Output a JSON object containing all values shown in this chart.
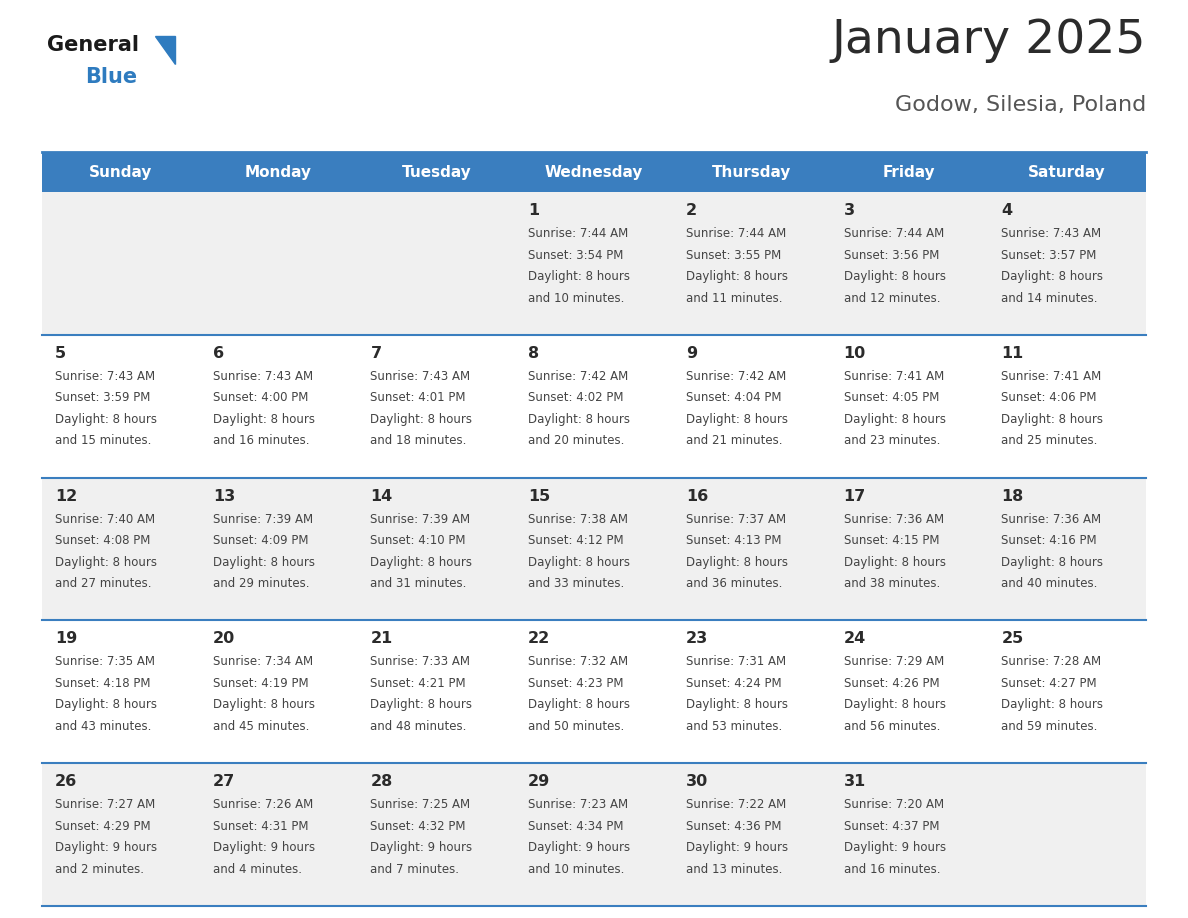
{
  "title": "January 2025",
  "subtitle": "Godow, Silesia, Poland",
  "header_color": "#3a7ebf",
  "header_text_color": "#ffffff",
  "day_names": [
    "Sunday",
    "Monday",
    "Tuesday",
    "Wednesday",
    "Thursday",
    "Friday",
    "Saturday"
  ],
  "background_color": "#ffffff",
  "cell_bg_odd": "#f0f0f0",
  "cell_bg_even": "#ffffff",
  "line_color": "#3a7ebf",
  "title_color": "#2b2b2b",
  "subtitle_color": "#555555",
  "day_number_color": "#2b2b2b",
  "cell_text_color": "#444444",
  "logo_general_color": "#1a1a1a",
  "logo_blue_color": "#2e7bbf",
  "weeks": [
    {
      "row": 0,
      "days": [
        {
          "col": 0,
          "day": null,
          "sunrise": null,
          "sunset": null,
          "daylight": null
        },
        {
          "col": 1,
          "day": null,
          "sunrise": null,
          "sunset": null,
          "daylight": null
        },
        {
          "col": 2,
          "day": null,
          "sunrise": null,
          "sunset": null,
          "daylight": null
        },
        {
          "col": 3,
          "day": 1,
          "sunrise": "7:44 AM",
          "sunset": "3:54 PM",
          "daylight": "8 hours and 10 minutes."
        },
        {
          "col": 4,
          "day": 2,
          "sunrise": "7:44 AM",
          "sunset": "3:55 PM",
          "daylight": "8 hours and 11 minutes."
        },
        {
          "col": 5,
          "day": 3,
          "sunrise": "7:44 AM",
          "sunset": "3:56 PM",
          "daylight": "8 hours and 12 minutes."
        },
        {
          "col": 6,
          "day": 4,
          "sunrise": "7:43 AM",
          "sunset": "3:57 PM",
          "daylight": "8 hours and 14 minutes."
        }
      ]
    },
    {
      "row": 1,
      "days": [
        {
          "col": 0,
          "day": 5,
          "sunrise": "7:43 AM",
          "sunset": "3:59 PM",
          "daylight": "8 hours and 15 minutes."
        },
        {
          "col": 1,
          "day": 6,
          "sunrise": "7:43 AM",
          "sunset": "4:00 PM",
          "daylight": "8 hours and 16 minutes."
        },
        {
          "col": 2,
          "day": 7,
          "sunrise": "7:43 AM",
          "sunset": "4:01 PM",
          "daylight": "8 hours and 18 minutes."
        },
        {
          "col": 3,
          "day": 8,
          "sunrise": "7:42 AM",
          "sunset": "4:02 PM",
          "daylight": "8 hours and 20 minutes."
        },
        {
          "col": 4,
          "day": 9,
          "sunrise": "7:42 AM",
          "sunset": "4:04 PM",
          "daylight": "8 hours and 21 minutes."
        },
        {
          "col": 5,
          "day": 10,
          "sunrise": "7:41 AM",
          "sunset": "4:05 PM",
          "daylight": "8 hours and 23 minutes."
        },
        {
          "col": 6,
          "day": 11,
          "sunrise": "7:41 AM",
          "sunset": "4:06 PM",
          "daylight": "8 hours and 25 minutes."
        }
      ]
    },
    {
      "row": 2,
      "days": [
        {
          "col": 0,
          "day": 12,
          "sunrise": "7:40 AM",
          "sunset": "4:08 PM",
          "daylight": "8 hours and 27 minutes."
        },
        {
          "col": 1,
          "day": 13,
          "sunrise": "7:39 AM",
          "sunset": "4:09 PM",
          "daylight": "8 hours and 29 minutes."
        },
        {
          "col": 2,
          "day": 14,
          "sunrise": "7:39 AM",
          "sunset": "4:10 PM",
          "daylight": "8 hours and 31 minutes."
        },
        {
          "col": 3,
          "day": 15,
          "sunrise": "7:38 AM",
          "sunset": "4:12 PM",
          "daylight": "8 hours and 33 minutes."
        },
        {
          "col": 4,
          "day": 16,
          "sunrise": "7:37 AM",
          "sunset": "4:13 PM",
          "daylight": "8 hours and 36 minutes."
        },
        {
          "col": 5,
          "day": 17,
          "sunrise": "7:36 AM",
          "sunset": "4:15 PM",
          "daylight": "8 hours and 38 minutes."
        },
        {
          "col": 6,
          "day": 18,
          "sunrise": "7:36 AM",
          "sunset": "4:16 PM",
          "daylight": "8 hours and 40 minutes."
        }
      ]
    },
    {
      "row": 3,
      "days": [
        {
          "col": 0,
          "day": 19,
          "sunrise": "7:35 AM",
          "sunset": "4:18 PM",
          "daylight": "8 hours and 43 minutes."
        },
        {
          "col": 1,
          "day": 20,
          "sunrise": "7:34 AM",
          "sunset": "4:19 PM",
          "daylight": "8 hours and 45 minutes."
        },
        {
          "col": 2,
          "day": 21,
          "sunrise": "7:33 AM",
          "sunset": "4:21 PM",
          "daylight": "8 hours and 48 minutes."
        },
        {
          "col": 3,
          "day": 22,
          "sunrise": "7:32 AM",
          "sunset": "4:23 PM",
          "daylight": "8 hours and 50 minutes."
        },
        {
          "col": 4,
          "day": 23,
          "sunrise": "7:31 AM",
          "sunset": "4:24 PM",
          "daylight": "8 hours and 53 minutes."
        },
        {
          "col": 5,
          "day": 24,
          "sunrise": "7:29 AM",
          "sunset": "4:26 PM",
          "daylight": "8 hours and 56 minutes."
        },
        {
          "col": 6,
          "day": 25,
          "sunrise": "7:28 AM",
          "sunset": "4:27 PM",
          "daylight": "8 hours and 59 minutes."
        }
      ]
    },
    {
      "row": 4,
      "days": [
        {
          "col": 0,
          "day": 26,
          "sunrise": "7:27 AM",
          "sunset": "4:29 PM",
          "daylight": "9 hours and 2 minutes."
        },
        {
          "col": 1,
          "day": 27,
          "sunrise": "7:26 AM",
          "sunset": "4:31 PM",
          "daylight": "9 hours and 4 minutes."
        },
        {
          "col": 2,
          "day": 28,
          "sunrise": "7:25 AM",
          "sunset": "4:32 PM",
          "daylight": "9 hours and 7 minutes."
        },
        {
          "col": 3,
          "day": 29,
          "sunrise": "7:23 AM",
          "sunset": "4:34 PM",
          "daylight": "9 hours and 10 minutes."
        },
        {
          "col": 4,
          "day": 30,
          "sunrise": "7:22 AM",
          "sunset": "4:36 PM",
          "daylight": "9 hours and 13 minutes."
        },
        {
          "col": 5,
          "day": 31,
          "sunrise": "7:20 AM",
          "sunset": "4:37 PM",
          "daylight": "9 hours and 16 minutes."
        },
        {
          "col": 6,
          "day": null,
          "sunrise": null,
          "sunset": null,
          "daylight": null
        }
      ]
    }
  ]
}
